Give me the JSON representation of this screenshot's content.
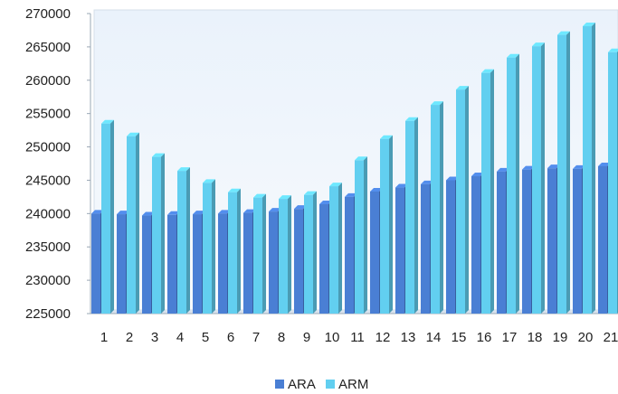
{
  "chart_data": {
    "type": "bar",
    "title": "",
    "xlabel": "",
    "ylabel": "",
    "ylim": [
      225000,
      270000
    ],
    "yticks": [
      225000,
      230000,
      235000,
      240000,
      245000,
      250000,
      255000,
      260000,
      265000,
      270000
    ],
    "categories": [
      "1",
      "2",
      "3",
      "4",
      "5",
      "6",
      "7",
      "8",
      "9",
      "10",
      "11",
      "12",
      "13",
      "14",
      "15",
      "16",
      "17",
      "18",
      "19",
      "20",
      "21"
    ],
    "series": [
      {
        "name": "ARA",
        "color": "#4a7fd4",
        "values": [
          240000,
          239900,
          239700,
          239800,
          239900,
          240000,
          240100,
          240300,
          240700,
          241400,
          242500,
          243300,
          243900,
          244400,
          245000,
          245600,
          246300,
          246600,
          246800,
          246700,
          247100
        ]
      },
      {
        "name": "ARM",
        "color": "#62cff0",
        "values": [
          253500,
          251600,
          248500,
          246400,
          244600,
          243200,
          242400,
          242200,
          242800,
          244100,
          248000,
          251200,
          253900,
          256300,
          258600,
          261100,
          263400,
          265100,
          266800,
          268100,
          264200
        ]
      }
    ],
    "legend_position": "bottom",
    "grid": false
  }
}
